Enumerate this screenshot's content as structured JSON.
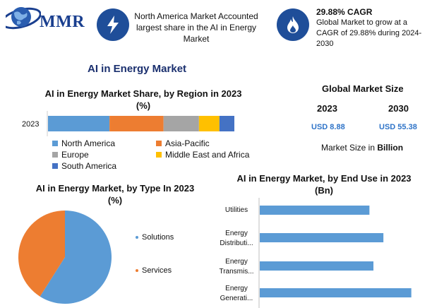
{
  "header": {
    "logo_text": "MMR",
    "logo_icon": "globe-icon",
    "na_text": "North America Market Accounted largest share in the AI in Energy Market",
    "na_icon": "lightning-bolt-icon",
    "cagr_title": "29.88% CAGR",
    "cagr_body": "Global Market to grow at a CAGR of 29.88% during 2024-2030",
    "cagr_icon": "flame-icon"
  },
  "page_title": "AI in Energy Market",
  "global_size": {
    "title": "Global Market Size",
    "year1": "2023",
    "year2": "2030",
    "value1": "USD 8.88",
    "value2": "USD 55.38",
    "note_prefix": "Market Size in ",
    "note_unit": "Billion"
  },
  "colors": {
    "blue": "#5b9bd5",
    "orange": "#ed7d31",
    "gray": "#a5a5a5",
    "yellow": "#ffc000",
    "darkblue": "#4472c4",
    "navy": "#1f4e99"
  },
  "chart_data": [
    {
      "type": "bar",
      "orientation": "horizontal-stacked",
      "title": "AI in Energy Market Share, by Region in 2023",
      "subtitle": "(%)",
      "categories": [
        "2023"
      ],
      "series": [
        {
          "name": "North America",
          "values": [
            33
          ],
          "color": "#5b9bd5"
        },
        {
          "name": "Asia-Pacific",
          "values": [
            29
          ],
          "color": "#ed7d31"
        },
        {
          "name": "Europe",
          "values": [
            19
          ],
          "color": "#a5a5a5"
        },
        {
          "name": "Middle East and Africa",
          "values": [
            11
          ],
          "color": "#ffc000"
        },
        {
          "name": "South America",
          "values": [
            8
          ],
          "color": "#4472c4"
        }
      ],
      "xlim": [
        0,
        100
      ],
      "legend": "bottom"
    },
    {
      "type": "pie",
      "title": "AI in Energy Market, by Type In 2023",
      "subtitle": "(%)",
      "slices": [
        {
          "name": "Solutions",
          "value": 59,
          "color": "#5b9bd5"
        },
        {
          "name": "Services",
          "value": 41,
          "color": "#ed7d31"
        }
      ],
      "legend": "right"
    },
    {
      "type": "bar",
      "orientation": "horizontal",
      "title": "AI in Energy Market, by End Use in 2023",
      "subtitle": "(Bn)",
      "categories": [
        "Utilities",
        "Energy Distributi...",
        "Energy Transmis...",
        "Energy Generati..."
      ],
      "values": [
        2.75,
        3.1,
        2.85,
        3.8
      ],
      "xlim": [
        0,
        4
      ],
      "color": "#5b9bd5"
    }
  ]
}
